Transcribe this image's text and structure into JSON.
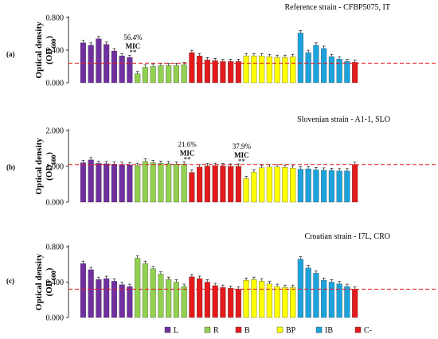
{
  "chart_data": [
    {
      "type": "bar",
      "panel_label": "(a)",
      "title": "Reference strain - CFBP5075, IT",
      "ylabel": "Optical density",
      "ylabel_sub": "(OD",
      "ylabel_sub_unit": "600",
      "ylabel_close": ")",
      "ylim": [
        0,
        0.8
      ],
      "yticks": [
        "0.000",
        "0.400",
        "0.800"
      ],
      "ytick_values": [
        0,
        0.4,
        0.8
      ],
      "mic_line": 0.24,
      "groups": [
        {
          "name": "L",
          "color": "#7030a0",
          "values": [
            0.49,
            0.46,
            0.54,
            0.47,
            0.39,
            0.33,
            0.31
          ]
        },
        {
          "name": "R",
          "color": "#92d050",
          "values": [
            0.11,
            0.19,
            0.2,
            0.21,
            0.21,
            0.21,
            0.22
          ]
        },
        {
          "name": "B",
          "color": "#e41a1c",
          "values": [
            0.37,
            0.33,
            0.28,
            0.27,
            0.26,
            0.26,
            0.26
          ]
        },
        {
          "name": "BP",
          "color": "#ffff00",
          "values": [
            0.33,
            0.33,
            0.33,
            0.32,
            0.31,
            0.31,
            0.32
          ]
        },
        {
          "name": "IB",
          "color": "#1ca3dc",
          "values": [
            0.61,
            0.37,
            0.46,
            0.42,
            0.32,
            0.29,
            0.26
          ]
        },
        {
          "name": "C-",
          "color": "#e41a1c",
          "values": [
            0.25
          ]
        }
      ],
      "annotations": [
        {
          "pct": "56.4%",
          "mic": "MIC",
          "stars": "**",
          "after_bar": 7
        }
      ]
    },
    {
      "type": "bar",
      "panel_label": "(b)",
      "title": "Slovenian strain - A1-1, SLO",
      "ylabel": "Optical density",
      "ylabel_sub": "(OD",
      "ylabel_sub_unit": "600",
      "ylabel_close": ")",
      "ylim": [
        0,
        2.0
      ],
      "yticks": [
        "0.000",
        "1.000",
        "2.000"
      ],
      "ytick_values": [
        0,
        1,
        2
      ],
      "mic_line": 1.05,
      "groups": [
        {
          "name": "L",
          "color": "#7030a0",
          "values": [
            1.1,
            1.18,
            1.08,
            1.07,
            1.06,
            1.05,
            1.04
          ]
        },
        {
          "name": "R",
          "color": "#92d050",
          "values": [
            1.02,
            1.14,
            1.1,
            1.08,
            1.07,
            1.06,
            1.06
          ]
        },
        {
          "name": "B",
          "color": "#e41a1c",
          "values": [
            0.83,
            0.98,
            1.01,
            1.02,
            1.01,
            1.0,
            1.0
          ]
        },
        {
          "name": "BP",
          "color": "#ffff00",
          "values": [
            0.66,
            0.84,
            0.96,
            0.98,
            0.98,
            0.97,
            0.95
          ]
        },
        {
          "name": "IB",
          "color": "#1ca3dc",
          "values": [
            0.92,
            0.93,
            0.9,
            0.89,
            0.88,
            0.87,
            0.87
          ]
        },
        {
          "name": "C-",
          "color": "#e41a1c",
          "values": [
            1.05
          ]
        }
      ],
      "annotations": [
        {
          "pct": "21.6%",
          "mic": "MIC",
          "stars": "**",
          "after_bar": 14
        },
        {
          "pct": "37.9%",
          "mic": "MIC",
          "stars": "**",
          "after_bar": 21
        }
      ]
    },
    {
      "type": "bar",
      "panel_label": "(c)",
      "title": "Croatian strain - I7L, CRO",
      "ylabel": "Optical density",
      "ylabel_sub": "(OD",
      "ylabel_sub_unit": "600",
      "ylabel_close": ")",
      "ylim": [
        0,
        0.8
      ],
      "yticks": [
        "0.000",
        "0.400",
        "0.800"
      ],
      "ytick_values": [
        0,
        0.4,
        0.8
      ],
      "mic_line": 0.32,
      "groups": [
        {
          "name": "L",
          "color": "#7030a0",
          "values": [
            0.61,
            0.54,
            0.43,
            0.44,
            0.41,
            0.37,
            0.35
          ]
        },
        {
          "name": "R",
          "color": "#92d050",
          "values": [
            0.67,
            0.61,
            0.55,
            0.49,
            0.43,
            0.4,
            0.35
          ]
        },
        {
          "name": "B",
          "color": "#e41a1c",
          "values": [
            0.46,
            0.44,
            0.4,
            0.36,
            0.34,
            0.33,
            0.32
          ]
        },
        {
          "name": "BP",
          "color": "#ffff00",
          "values": [
            0.42,
            0.43,
            0.41,
            0.38,
            0.35,
            0.34,
            0.34
          ]
        },
        {
          "name": "IB",
          "color": "#1ca3dc",
          "values": [
            0.66,
            0.56,
            0.5,
            0.42,
            0.4,
            0.38,
            0.35
          ]
        },
        {
          "name": "C-",
          "color": "#e41a1c",
          "values": [
            0.32
          ]
        }
      ],
      "annotations": []
    }
  ],
  "legend": [
    {
      "label": "L",
      "color": "#7030a0"
    },
    {
      "label": "R",
      "color": "#92d050"
    },
    {
      "label": "B",
      "color": "#e41a1c"
    },
    {
      "label": "BP",
      "color": "#ffff00"
    },
    {
      "label": "IB",
      "color": "#1ca3dc"
    },
    {
      "label": "C-",
      "color": "#e41a1c"
    }
  ],
  "mic_line_color": "#e41a1c"
}
